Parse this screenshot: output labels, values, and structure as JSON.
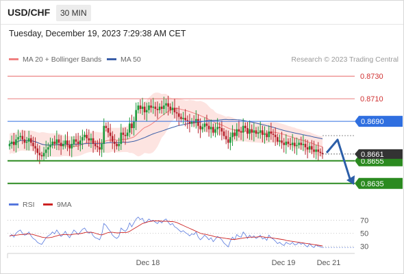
{
  "header": {
    "symbol": "USD/CHF",
    "timeframe": "30 MIN",
    "timestamp": "Tuesday, December 19, 2023 7:29:38 AM CET"
  },
  "colors": {
    "ma20": "#f08080",
    "bollinger_fill": "#fde4e1",
    "ma50": "#3a5ea8",
    "bull": "#1a9a3a",
    "bear": "#b5202a",
    "resistance": "#e35050",
    "pivot": "#2f6fe0",
    "support": "#2b8a20",
    "arrow": "#2c5ea8",
    "price_tag": "#333333",
    "rsi": "#5577dd",
    "rsi_ma": "#cc2222"
  },
  "chart_data": [
    {
      "type": "candlestick",
      "legend": [
        {
          "label": "MA 20 + Bollinger Bands",
          "color": "#f08080"
        },
        {
          "label": "MA 50",
          "color": "#3a5ea8"
        }
      ],
      "watermark": "Research © 2023 Trading Central",
      "ylim": [
        0.863,
        0.8738
      ],
      "levels": [
        {
          "value": 0.873,
          "label": "0.8730",
          "kind": "resistance"
        },
        {
          "value": 0.871,
          "label": "0.8710",
          "kind": "resistance"
        },
        {
          "value": 0.869,
          "label": "0.8690",
          "kind": "pivot"
        },
        {
          "value": 0.8655,
          "label": "0.8655",
          "kind": "support"
        },
        {
          "value": 0.8635,
          "label": "0.8635",
          "kind": "support"
        }
      ],
      "last_price": 0.8661,
      "last_price_label": "0.8661",
      "x_tick_labels": [
        "Dec 18",
        "Dec 19",
        "Dec 21"
      ],
      "closes": [
        0.867,
        0.8672,
        0.8669,
        0.8674,
        0.8676,
        0.8677,
        0.8674,
        0.8671,
        0.8672,
        0.8675,
        0.8671,
        0.8668,
        0.8666,
        0.8662,
        0.866,
        0.8659,
        0.8662,
        0.8665,
        0.8667,
        0.8669,
        0.8672,
        0.867,
        0.8674,
        0.8671,
        0.8668,
        0.867,
        0.8673,
        0.8669,
        0.8666,
        0.867,
        0.8674,
        0.8672,
        0.867,
        0.8673,
        0.8676,
        0.8678,
        0.8675,
        0.8673,
        0.8675,
        0.867,
        0.8668,
        0.8667,
        0.8665,
        0.867,
        0.8686,
        0.8684,
        0.868,
        0.8677,
        0.8672,
        0.867,
        0.8668,
        0.867,
        0.868,
        0.8678,
        0.8677,
        0.868,
        0.8688,
        0.8684,
        0.869,
        0.87,
        0.8704,
        0.8701,
        0.8703,
        0.8698,
        0.87,
        0.8704,
        0.8702,
        0.8703,
        0.8701,
        0.87,
        0.8703,
        0.8701,
        0.8704,
        0.8706,
        0.8703,
        0.87,
        0.8702,
        0.8698,
        0.8697,
        0.8694,
        0.8692,
        0.8693,
        0.8691,
        0.869,
        0.8688,
        0.869,
        0.8689,
        0.8692,
        0.8686,
        0.8683,
        0.8685,
        0.8688,
        0.8686,
        0.8683,
        0.8685,
        0.868,
        0.8683,
        0.8685,
        0.8684,
        0.8681,
        0.8677,
        0.8674,
        0.8671,
        0.8676,
        0.868,
        0.8677,
        0.8683,
        0.8681,
        0.868,
        0.8686,
        0.8684,
        0.8679,
        0.8683,
        0.868,
        0.8682,
        0.8679,
        0.868,
        0.8682,
        0.8678,
        0.8679,
        0.8676,
        0.8681,
        0.8679,
        0.8678,
        0.8676,
        0.8672,
        0.8673,
        0.8671,
        0.8669,
        0.8672,
        0.867,
        0.8669,
        0.8671,
        0.8668,
        0.8669,
        0.8671,
        0.8669,
        0.867,
        0.8667,
        0.8665,
        0.8668,
        0.8665,
        0.8663,
        0.8665,
        0.8663,
        0.8662,
        0.8661
      ]
    },
    {
      "type": "line",
      "legend": [
        {
          "label": "RSI",
          "color": "#5577dd"
        },
        {
          "label": "9MA",
          "color": "#cc2222"
        }
      ],
      "ylim": [
        22,
        78
      ],
      "y_tick_labels": [
        "70",
        "50",
        "30"
      ],
      "rsi": [
        45,
        48,
        44,
        50,
        53,
        55,
        50,
        47,
        48,
        52,
        46,
        42,
        40,
        36,
        34,
        33,
        38,
        43,
        46,
        48,
        52,
        49,
        55,
        50,
        45,
        48,
        53,
        47,
        43,
        49,
        55,
        52,
        48,
        52,
        56,
        58,
        53,
        50,
        52,
        46,
        43,
        42,
        40,
        48,
        65,
        62,
        57,
        53,
        47,
        44,
        42,
        45,
        58,
        55,
        53,
        57,
        66,
        60,
        66,
        72,
        75,
        71,
        73,
        66,
        68,
        72,
        69,
        70,
        67,
        65,
        69,
        66,
        70,
        72,
        67,
        63,
        65,
        60,
        58,
        55,
        52,
        54,
        51,
        49,
        46,
        49,
        48,
        52,
        44,
        40,
        43,
        47,
        44,
        40,
        43,
        37,
        41,
        45,
        43,
        40,
        35,
        32,
        29,
        38,
        44,
        40,
        48,
        45,
        44,
        52,
        48,
        42,
        47,
        43,
        46,
        42,
        44,
        47,
        41,
        43,
        39,
        47,
        43,
        41,
        38,
        34,
        36,
        33,
        31,
        36,
        34,
        33,
        36,
        32,
        33,
        36,
        33,
        35,
        31,
        29,
        34,
        30,
        28,
        32,
        30,
        29,
        28
      ],
      "rsi_ma": [
        46,
        46.5,
        47,
        47,
        47.5,
        48,
        48,
        48.5,
        49,
        49,
        48.5,
        48,
        47,
        46,
        45,
        44,
        43.5,
        43,
        43,
        43.5,
        44,
        45,
        46,
        47,
        47.5,
        48,
        48,
        48,
        47.5,
        48,
        48.5,
        49,
        49,
        49.5,
        50,
        51,
        51.5,
        51.5,
        51.5,
        51,
        50,
        49,
        48,
        47.5,
        48.5,
        50,
        51,
        51.5,
        51.5,
        51,
        50.5,
        50.5,
        51,
        51,
        51,
        51.5,
        53,
        55,
        57,
        59,
        61,
        63,
        65,
        66,
        67,
        68,
        68.5,
        69,
        69,
        69,
        69,
        68.5,
        68.5,
        68.5,
        68.5,
        68,
        68,
        67.5,
        66.5,
        65,
        63.5,
        62,
        60.5,
        59,
        57.5,
        56,
        54.5,
        53,
        51.5,
        50,
        49,
        48.5,
        48,
        47,
        46.5,
        45.5,
        44.5,
        44,
        43.5,
        43,
        42.5,
        42,
        41.5,
        41,
        40.5,
        40.5,
        41,
        41.5,
        42,
        42.5,
        43,
        43.5,
        44,
        44,
        44,
        44,
        44.5,
        44.5,
        44.5,
        44,
        43.5,
        43.5,
        43,
        42.5,
        42,
        41.5,
        41,
        40.5,
        40,
        39,
        38.5,
        38,
        37.5,
        37,
        36.5,
        36,
        35.5,
        35,
        34.5,
        34,
        33.5,
        33,
        32.5,
        32,
        31.5,
        31,
        30.5
      ]
    }
  ]
}
